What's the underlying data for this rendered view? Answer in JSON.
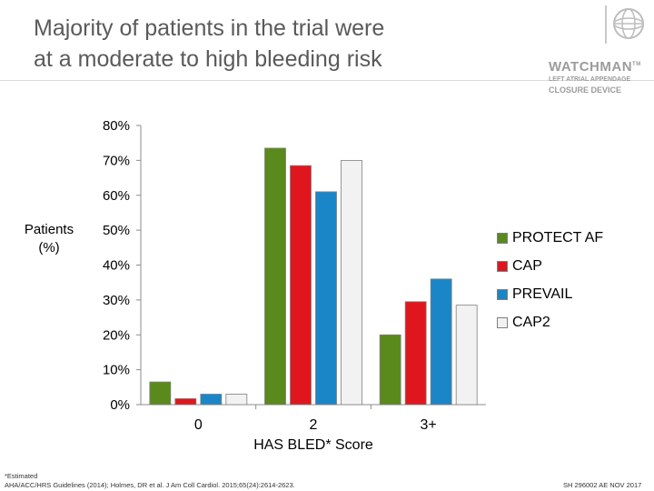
{
  "slide": {
    "title_line1": "Majority of patients in the trial were",
    "title_line2": "at a moderate to high bleeding risk",
    "footnote_line1": "*Estimated",
    "footnote_line2": "AHA/ACC/HRS Guidelines (2014); Holmes, DR et al. J Am Coll Cardiol. 2015;65(24):2614-2623.",
    "code": "SH 296002 AE NOV 2017"
  },
  "brand": {
    "name": "WATCHMAN",
    "tm": "TM",
    "sub1": "LEFT ATRIAL APPENDAGE",
    "sub2": "CLOSURE DEVICE",
    "logo_icon": "globe-icon"
  },
  "chart_data": {
    "type": "bar",
    "categories": [
      "0",
      "2",
      "3+"
    ],
    "series": [
      {
        "name": "PROTECT AF",
        "color": "#5a8a1c",
        "values": [
          6.5,
          73.5,
          20
        ]
      },
      {
        "name": "CAP",
        "color": "#e0161e",
        "values": [
          1.7,
          68.5,
          29.5
        ]
      },
      {
        "name": "PREVAIL",
        "color": "#1a86c8",
        "values": [
          3,
          61,
          36
        ]
      },
      {
        "name": "CAP2",
        "color": "#f2f2f2",
        "values": [
          3,
          70,
          28.5
        ]
      }
    ],
    "ylabel_line1": "Patients",
    "ylabel_line2": "(%)",
    "xlabel": "HAS BLED* Score",
    "ylim": [
      0,
      80
    ],
    "yticks": [
      "0%",
      "10%",
      "20%",
      "30%",
      "40%",
      "50%",
      "60%",
      "70%",
      "80%"
    ],
    "grid": false,
    "legend_position": "right"
  }
}
